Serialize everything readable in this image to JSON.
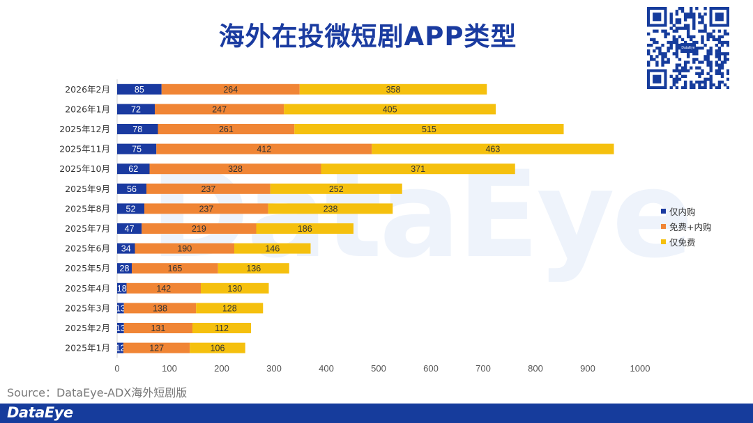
{
  "title": "海外在投微短剧APP类型",
  "source": "Source：DataEye-ADX海外短剧版",
  "footer_logo": "DataEye",
  "watermark": "DataEye",
  "qr_logo_text": "DataEye",
  "colors": {
    "series1": "#1a3aa0",
    "series2": "#f08535",
    "series3": "#f5c00e",
    "title": "#1a3ba0",
    "footer": "#163c9c"
  },
  "chart_data": {
    "type": "bar",
    "orientation": "horizontal",
    "stacked": true,
    "title": "海外在投微短剧APP类型",
    "xlabel": "",
    "ylabel": "",
    "xlim": [
      0,
      1000
    ],
    "xticks": [
      "0",
      "100",
      "200",
      "300",
      "400",
      "500",
      "600",
      "700",
      "800",
      "900",
      "1000"
    ],
    "legend_position": "right",
    "categories": [
      "2026年2月",
      "2026年1月",
      "2025年12月",
      "2025年11月",
      "2025年10月",
      "2025年9月",
      "2025年8月",
      "2025年7月",
      "2025年6月",
      "2025年5月",
      "2025年4月",
      "2025年3月",
      "2025年2月",
      "2025年1月"
    ],
    "series": [
      {
        "name": "仅内购",
        "values": [
          85,
          72,
          78,
          75,
          62,
          56,
          52,
          47,
          34,
          28,
          18,
          13,
          13,
          12
        ]
      },
      {
        "name": "免费+内购",
        "values": [
          264,
          247,
          261,
          412,
          328,
          237,
          237,
          219,
          190,
          165,
          142,
          138,
          131,
          127
        ]
      },
      {
        "name": "仅免费",
        "values": [
          358,
          405,
          515,
          463,
          371,
          252,
          238,
          186,
          146,
          136,
          130,
          128,
          112,
          106
        ]
      }
    ]
  }
}
